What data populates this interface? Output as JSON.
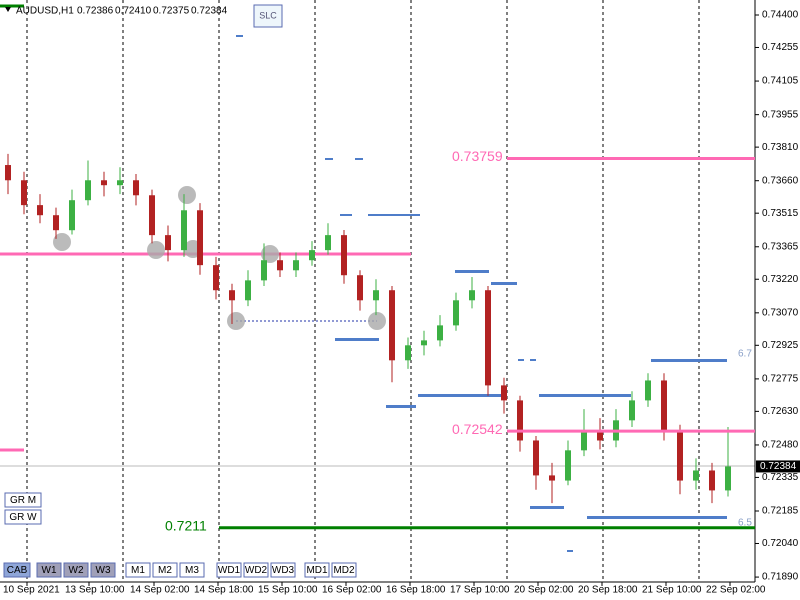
{
  "chart_data": {
    "type": "candlestick",
    "header": {
      "symbol": "AUDUSD,H1",
      "prices": [
        0.72386,
        {
          "value": 0.7241,
          "label": "0.72410"
        },
        0.72375,
        0.72384
      ]
    },
    "ylim": [
      0.71868,
      0.74467
    ],
    "yticks": [
      {
        "value": 0.744,
        "label": "0.74400"
      },
      0.74255,
      0.74105,
      0.73955,
      {
        "value": 0.7381,
        "label": "0.73810"
      },
      {
        "value": 0.7366,
        "label": "0.73660"
      },
      0.73515,
      0.73365,
      {
        "value": 0.7322,
        "label": "0.73220"
      },
      {
        "value": 0.7307,
        "label": "0.73070"
      },
      0.72925,
      0.72775,
      {
        "value": 0.7263,
        "label": "0.72630"
      },
      {
        "value": 0.7248,
        "label": "0.72480"
      },
      0.72335,
      0.72185,
      {
        "value": 0.7204,
        "label": "0.72040"
      },
      {
        "value": 0.7189,
        "label": "0.71890"
      }
    ],
    "x_labels": [
      "10 Sep 2021",
      "13 Sep 10:00",
      "14 Sep 02:00",
      "14 Sep 18:00",
      "15 Sep 10:00",
      "16 Sep 02:00",
      "16 Sep 18:00",
      "17 Sep 10:00",
      "20 Sep 02:00",
      "20 Sep 18:00",
      "21 Sep 10:00",
      "22 Sep 02:00"
    ],
    "up_color": "#3cb043",
    "down_color": "#b22222",
    "ohlc": [
      [
        0.7373,
        0.7378,
        0.736,
        0.73662
      ],
      [
        0.73662,
        0.737,
        0.7351,
        0.73551
      ],
      [
        0.73551,
        0.736,
        0.7347,
        0.73506
      ],
      [
        0.73506,
        0.7354,
        0.734,
        0.73439
      ],
      [
        0.73439,
        0.7362,
        0.7342,
        0.73573
      ],
      [
        0.73573,
        0.7375,
        0.7355,
        0.73662
      ],
      [
        0.73662,
        0.737,
        0.7359,
        0.7364
      ],
      [
        0.7364,
        0.7372,
        0.736,
        0.73662
      ],
      [
        0.73662,
        0.7369,
        0.7355,
        0.73595
      ],
      [
        0.73595,
        0.7362,
        0.7338,
        0.73417
      ],
      [
        0.73417,
        0.7346,
        0.733,
        0.7335
      ],
      [
        0.7335,
        0.736,
        0.7332,
        0.73528
      ],
      [
        0.73528,
        0.7356,
        0.7324,
        0.73283
      ],
      [
        0.73283,
        0.7332,
        0.7313,
        0.73171
      ],
      [
        0.73171,
        0.732,
        0.7302,
        0.73126
      ],
      [
        0.73126,
        0.7326,
        0.731,
        0.73215
      ],
      [
        0.73215,
        0.7338,
        0.7319,
        0.73305
      ],
      [
        0.73305,
        0.7334,
        0.7323,
        0.7326
      ],
      [
        0.7326,
        0.7334,
        0.7323,
        0.73305
      ],
      [
        0.73305,
        0.7339,
        0.7328,
        0.7335
      ],
      [
        0.7335,
        0.7347,
        0.7333,
        0.73417
      ],
      [
        0.73417,
        0.7344,
        0.732,
        0.73238
      ],
      [
        0.73238,
        0.7326,
        0.7308,
        0.73126
      ],
      [
        0.73126,
        0.7322,
        0.7306,
        0.73171
      ],
      [
        0.73171,
        0.7319,
        0.7276,
        0.72858
      ],
      [
        0.72858,
        0.7296,
        0.7282,
        0.72925
      ],
      [
        0.72925,
        0.7299,
        0.7288,
        0.72947
      ],
      [
        0.72947,
        0.7306,
        0.7292,
        0.73014
      ],
      [
        0.73014,
        0.7316,
        0.7299,
        0.73126
      ],
      [
        0.73126,
        0.7323,
        0.7309,
        0.73171
      ],
      [
        0.73171,
        0.7319,
        0.727,
        0.72746
      ],
      [
        0.72746,
        0.7278,
        0.7262,
        0.72679
      ],
      [
        0.72679,
        0.727,
        0.7245,
        0.725
      ],
      [
        0.725,
        0.7252,
        0.7228,
        0.72344
      ],
      [
        0.72344,
        0.724,
        0.7222,
        0.72321
      ],
      [
        0.72321,
        0.725,
        0.723,
        0.72456
      ],
      [
        0.72456,
        0.7264,
        0.7243,
        0.72545
      ],
      [
        0.72545,
        0.726,
        0.7246,
        0.725
      ],
      [
        0.725,
        0.7264,
        0.7247,
        0.7259
      ],
      [
        0.7259,
        0.7272,
        0.7256,
        0.72679
      ],
      [
        0.72679,
        0.728,
        0.7265,
        0.72768
      ],
      [
        0.72768,
        0.728,
        0.725,
        0.72545
      ],
      [
        0.72545,
        0.7257,
        0.7226,
        0.72321
      ],
      [
        0.72321,
        0.7242,
        0.7228,
        0.72366
      ],
      [
        0.72366,
        0.724,
        0.7222,
        0.72277
      ],
      [
        0.72277,
        0.7256,
        0.7225,
        0.72384
      ]
    ],
    "levels": [
      {
        "price": 0.73759,
        "color": "#ff69b4"
      },
      {
        "price": 0.72542,
        "color": "#ff69b4"
      },
      {
        "price": 0.7211,
        "color": "#008000"
      }
    ],
    "last_price": 0.72384,
    "side_labels": [
      "6.7",
      "6.5"
    ],
    "buttons": {
      "top": "SLC",
      "group": [
        "GR M",
        "GR W"
      ],
      "bottom": [
        "CAB",
        "W1",
        "W2",
        "W3",
        "M1",
        "M2",
        "M3",
        "WD1",
        "WD2",
        "WD3",
        "MD1",
        "MD2"
      ]
    }
  }
}
